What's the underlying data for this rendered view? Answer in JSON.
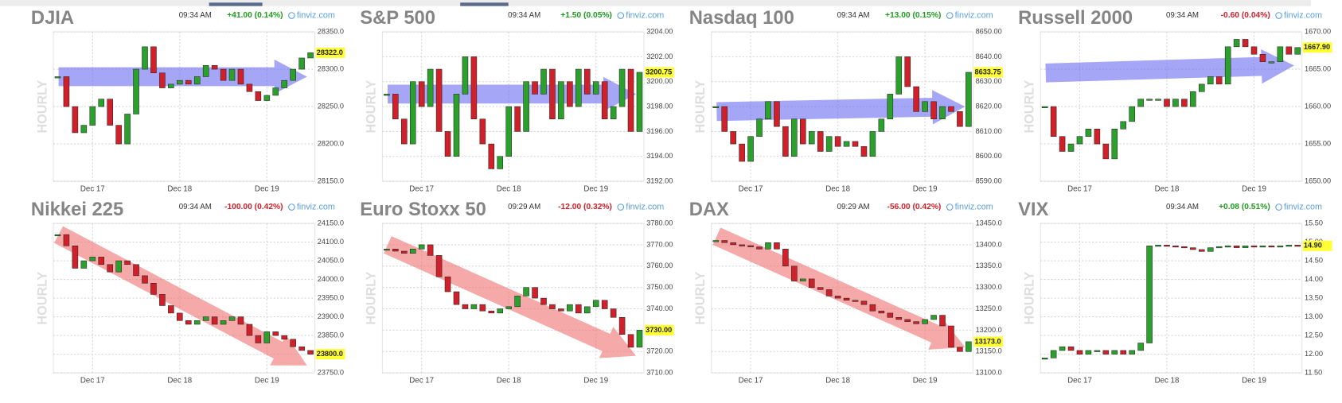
{
  "chart_data": [
    {
      "type": "candlestick",
      "title": "DJIA",
      "time": "09:34 AM",
      "change": "+41.00 (0.14%)",
      "change_color": "#1f9a1f",
      "source": "finviz.com",
      "ylabel": "HOURLY",
      "categories": [
        null,
        null,
        null,
        null,
        "Dec 17",
        null,
        null,
        null,
        null,
        null,
        null,
        null,
        null,
        null,
        "Dec 18",
        null,
        null,
        null,
        null,
        null,
        null,
        null,
        null,
        null,
        "Dec 19",
        null,
        null,
        null,
        null,
        null
      ],
      "values": [
        28290,
        28250,
        28215,
        28225,
        28250,
        28260,
        28225,
        28200,
        28240,
        28300,
        28330,
        28295,
        28275,
        28280,
        28285,
        28280,
        28290,
        28305,
        28300,
        28285,
        28300,
        28280,
        28270,
        28258,
        28265,
        28275,
        28285,
        28300,
        28315,
        28322
      ],
      "color_up": "#2ca02c",
      "color_down": "#d0202a",
      "ylim": [
        28150,
        28350
      ],
      "yticks": [
        {
          "value": 28350,
          "label": "28350.0"
        },
        {
          "value": 28300,
          "label": "28300.0"
        },
        {
          "value": 28250,
          "label": "28250.0"
        },
        {
          "value": 28200,
          "label": "28200.0"
        },
        {
          "value": 28150,
          "label": "28150.0"
        }
      ],
      "current": {
        "value": 28322,
        "label": "28322.0"
      },
      "trend": {
        "from": 28290,
        "to": 28290,
        "color": "#6b6bf2"
      }
    },
    {
      "type": "candlestick",
      "title": "S&P 500",
      "time": "09:34 AM",
      "change": "+1.50 (0.05%)",
      "change_color": "#1f9a1f",
      "source": "finviz.com",
      "ylabel": "HOURLY",
      "categories": [
        null,
        null,
        null,
        null,
        "Dec 17",
        null,
        null,
        null,
        null,
        null,
        null,
        null,
        null,
        null,
        "Dec 18",
        null,
        null,
        null,
        null,
        null,
        null,
        null,
        null,
        null,
        "Dec 19",
        null,
        null,
        null,
        null,
        null
      ],
      "values": [
        3199,
        3197,
        3195,
        3200,
        3198,
        3201,
        3196,
        3194,
        3199,
        3202,
        3197,
        3195,
        3193,
        3194,
        3198,
        3196,
        3200,
        3199,
        3201,
        3197,
        3200,
        3198,
        3201,
        3199,
        3200,
        3197,
        3198,
        3201,
        3196,
        3200.75
      ],
      "color_up": "#2ca02c",
      "color_down": "#d0202a",
      "ylim": [
        3192,
        3204
      ],
      "yticks": [
        {
          "value": 3204,
          "label": "3204.00"
        },
        {
          "value": 3202,
          "label": "3202.00"
        },
        {
          "value": 3200,
          "label": "3200.00"
        },
        {
          "value": 3198,
          "label": "3198.00"
        },
        {
          "value": 3196,
          "label": "3196.00"
        },
        {
          "value": 3194,
          "label": "3194.00"
        },
        {
          "value": 3192,
          "label": "3192.00"
        }
      ],
      "current": 3200.75,
      "trend": {
        "from": 3199,
        "to": 3199,
        "color": "#6b6bf2"
      }
    },
    {
      "type": "candlestick",
      "title": "Nasdaq 100",
      "time": "09:34 AM",
      "change": "+13.00 (0.15%)",
      "change_color": "#1f9a1f",
      "source": "finviz.com",
      "ylabel": "HOURLY",
      "categories": [
        null,
        null,
        null,
        null,
        "Dec 17",
        null,
        null,
        null,
        null,
        null,
        null,
        null,
        null,
        null,
        "Dec 18",
        null,
        null,
        null,
        null,
        null,
        null,
        null,
        null,
        null,
        "Dec 19",
        null,
        null,
        null,
        null,
        null
      ],
      "values": [
        8620,
        8610,
        8605,
        8598,
        8608,
        8615,
        8622,
        8612,
        8600,
        8615,
        8605,
        8610,
        8602,
        8608,
        8604,
        8606,
        8604,
        8600,
        8610,
        8615,
        8625,
        8640,
        8628,
        8618,
        8622,
        8615,
        8620,
        8618,
        8612,
        8633.75
      ],
      "color_up": "#2ca02c",
      "color_down": "#d0202a",
      "ylim": [
        8590,
        8650
      ],
      "yticks": [
        {
          "value": 8650,
          "label": "8650.00"
        },
        {
          "value": 8640,
          "label": "8640.00"
        },
        {
          "value": 8630,
          "label": "8630.00"
        },
        {
          "value": 8620,
          "label": "8620.00"
        },
        {
          "value": 8610,
          "label": "8610.00"
        },
        {
          "value": 8600,
          "label": "8600.00"
        },
        {
          "value": 8590,
          "label": "8590.00"
        }
      ],
      "current": 8633.75,
      "trend": {
        "from": 8618,
        "to": 8620,
        "color": "#6b6bf2"
      }
    },
    {
      "type": "candlestick",
      "title": "Russell 2000",
      "time": "09:34 AM",
      "change": "-0.60 (0.04%)",
      "change_color": "#d0202a",
      "source": "finviz.com",
      "ylabel": "HOURLY",
      "categories": [
        null,
        null,
        null,
        null,
        "Dec 17",
        null,
        null,
        null,
        null,
        null,
        null,
        null,
        null,
        null,
        "Dec 18",
        null,
        null,
        null,
        null,
        null,
        null,
        null,
        null,
        null,
        "Dec 19",
        null,
        null,
        null,
        null,
        null
      ],
      "values": [
        1660,
        1656,
        1654,
        1655,
        1656,
        1657,
        1655,
        1653,
        1657,
        1658,
        1660,
        1661,
        1661,
        1661,
        1660,
        1661,
        1660,
        1662,
        1663,
        1664,
        1663,
        1668,
        1669,
        1668,
        1667,
        1666,
        1666,
        1668,
        1667,
        1667.9
      ],
      "color_up": "#2ca02c",
      "color_down": "#d0202a",
      "ylim": [
        1650,
        1670
      ],
      "yticks": [
        {
          "value": 1670,
          "label": "1670.00"
        },
        {
          "value": 1665,
          "label": "1665.00"
        },
        {
          "value": 1660,
          "label": "1660.00"
        },
        {
          "value": 1655,
          "label": "1655.00"
        },
        {
          "value": 1650,
          "label": "1650.00"
        }
      ],
      "current": {
        "value": 1667.9,
        "label": "1667.90"
      },
      "trend": {
        "from": 1664.5,
        "to": 1665.5,
        "color": "#6b6bf2"
      }
    },
    {
      "type": "candlestick",
      "title": "Nikkei 225",
      "time": "09:34 AM",
      "change": "-100.00 (0.42%)",
      "change_color": "#d0202a",
      "source": "finviz.com",
      "ylabel": "HOURLY",
      "categories": [
        null,
        null,
        null,
        null,
        "Dec 17",
        null,
        null,
        null,
        null,
        null,
        null,
        null,
        null,
        null,
        "Dec 18",
        null,
        null,
        null,
        null,
        null,
        null,
        null,
        null,
        null,
        "Dec 19",
        null,
        null,
        null,
        null,
        null
      ],
      "values": [
        24120,
        24090,
        24030,
        24050,
        24060,
        24040,
        24020,
        24050,
        24040,
        24010,
        23990,
        23960,
        23930,
        23910,
        23890,
        23880,
        23890,
        23900,
        23880,
        23890,
        23900,
        23880,
        23850,
        23830,
        23860,
        23850,
        23840,
        23820,
        23810,
        23800
      ],
      "color_up": "#2ca02c",
      "color_down": "#d0202a",
      "ylim": [
        23750,
        24150
      ],
      "yticks": [
        {
          "value": 24150,
          "label": "24150.0"
        },
        {
          "value": 24100,
          "label": "24100.0"
        },
        {
          "value": 24050,
          "label": "24050.0"
        },
        {
          "value": 24000,
          "label": "24000.0"
        },
        {
          "value": 23950,
          "label": "23950.0"
        },
        {
          "value": 23900,
          "label": "23900.0"
        },
        {
          "value": 23850,
          "label": "23850.0"
        },
        {
          "value": 23800,
          "label": "23800.0"
        },
        {
          "value": 23750,
          "label": "23750.0"
        }
      ],
      "current": {
        "value": 23800,
        "label": "23800.0"
      },
      "trend": {
        "from": 24120,
        "to": 23770,
        "color": "#f07070"
      }
    },
    {
      "type": "candlestick",
      "title": "Euro Stoxx 50",
      "time": "09:29 AM",
      "change": "-12.00 (0.32%)",
      "change_color": "#d0202a",
      "source": "finviz.com",
      "ylabel": "HOURLY",
      "categories": [
        null,
        null,
        null,
        null,
        "Dec 17",
        null,
        null,
        null,
        null,
        null,
        null,
        null,
        null,
        null,
        "Dec 18",
        null,
        null,
        null,
        null,
        null,
        null,
        null,
        null,
        null,
        "Dec 19",
        null,
        null,
        null,
        null,
        null
      ],
      "values": [
        3768,
        3767,
        3766,
        3768,
        3770,
        3765,
        3755,
        3748,
        3742,
        3740,
        3742,
        3739,
        3738,
        3740,
        3741,
        3746,
        3750,
        3745,
        3742,
        3740,
        3739,
        3742,
        3738,
        3741,
        3744,
        3740,
        3736,
        3728,
        3722,
        3730
      ],
      "color_up": "#2ca02c",
      "color_down": "#d0202a",
      "ylim": [
        3710,
        3780
      ],
      "yticks": [
        {
          "value": 3780,
          "label": "3780.00"
        },
        {
          "value": 3770,
          "label": "3770.00"
        },
        {
          "value": 3760,
          "label": "3760.00"
        },
        {
          "value": 3750,
          "label": "3750.00"
        },
        {
          "value": 3740,
          "label": "3740.00"
        },
        {
          "value": 3730,
          "label": "3730.00"
        },
        {
          "value": 3720,
          "label": "3720.00"
        },
        {
          "value": 3710,
          "label": "3710.00"
        }
      ],
      "current": {
        "value": 3730,
        "label": "3730.00"
      },
      "trend": {
        "from": 3770,
        "to": 3718,
        "color": "#f07070"
      }
    },
    {
      "type": "candlestick",
      "title": "DAX",
      "time": "09:29 AM",
      "change": "-56.00 (0.42%)",
      "change_color": "#d0202a",
      "source": "finviz.com",
      "ylabel": "HOURLY",
      "categories": [
        null,
        null,
        null,
        null,
        "Dec 17",
        null,
        null,
        null,
        null,
        null,
        null,
        null,
        null,
        null,
        "Dec 18",
        null,
        null,
        null,
        null,
        null,
        null,
        null,
        null,
        null,
        "Dec 19",
        null,
        null,
        null,
        null,
        null
      ],
      "values": [
        13410,
        13405,
        13400,
        13398,
        13395,
        13390,
        13405,
        13390,
        13350,
        13315,
        13320,
        13300,
        13295,
        13280,
        13275,
        13270,
        13268,
        13260,
        13245,
        13240,
        13230,
        13225,
        13220,
        13215,
        13225,
        13235,
        13210,
        13160,
        13150,
        13173
      ],
      "color_up": "#2ca02c",
      "color_down": "#d0202a",
      "ylim": [
        13100,
        13450
      ],
      "yticks": [
        {
          "value": 13450,
          "label": "13450.0"
        },
        {
          "value": 13400,
          "label": "13400.0"
        },
        {
          "value": 13350,
          "label": "13350.0"
        },
        {
          "value": 13300,
          "label": "13300.0"
        },
        {
          "value": 13250,
          "label": "13250.0"
        },
        {
          "value": 13200,
          "label": "13200.0"
        },
        {
          "value": 13150,
          "label": "13150.0"
        },
        {
          "value": 13100,
          "label": "13100.0"
        }
      ],
      "current": {
        "value": 13173,
        "label": "13173.0"
      },
      "trend": {
        "from": 13420,
        "to": 13160,
        "color": "#f07070"
      }
    },
    {
      "type": "candlestick",
      "title": "VIX",
      "time": "09:34 AM",
      "change": "+0.08 (0.51%)",
      "change_color": "#1f9a1f",
      "source": "finviz.com",
      "ylabel": "HOURLY",
      "categories": [
        null,
        null,
        null,
        null,
        "Dec 17",
        null,
        null,
        null,
        null,
        null,
        null,
        null,
        null,
        null,
        "Dec 18",
        null,
        null,
        null,
        null,
        null,
        null,
        null,
        null,
        null,
        "Dec 19",
        null,
        null,
        null,
        null,
        null
      ],
      "values": [
        11.9,
        12.1,
        12.2,
        12.1,
        12.0,
        12.1,
        12.1,
        12.0,
        12.1,
        12.0,
        12.1,
        12.3,
        14.9,
        14.92,
        14.9,
        14.88,
        14.85,
        14.8,
        14.75,
        14.85,
        14.88,
        14.9,
        14.85,
        14.9,
        14.88,
        14.9,
        14.87,
        14.9,
        14.92,
        14.9
      ],
      "color_up": "#2ca02c",
      "color_down": "#d0202a",
      "ylim": [
        11.5,
        15.5
      ],
      "yticks": [
        {
          "value": 15.5,
          "label": "15.50"
        },
        {
          "value": 15,
          "label": "15.00"
        },
        {
          "value": 14.5,
          "label": "14.50"
        },
        {
          "value": 14,
          "label": "14.00"
        },
        {
          "value": 13.5,
          "label": "13.50"
        },
        {
          "value": 13,
          "label": "13.00"
        },
        {
          "value": 12.5,
          "label": "12.50"
        },
        {
          "value": 12,
          "label": "12.00"
        },
        {
          "value": 11.5,
          "label": "11.50"
        }
      ],
      "current": {
        "value": 14.9,
        "label": "14.90"
      }
    }
  ]
}
